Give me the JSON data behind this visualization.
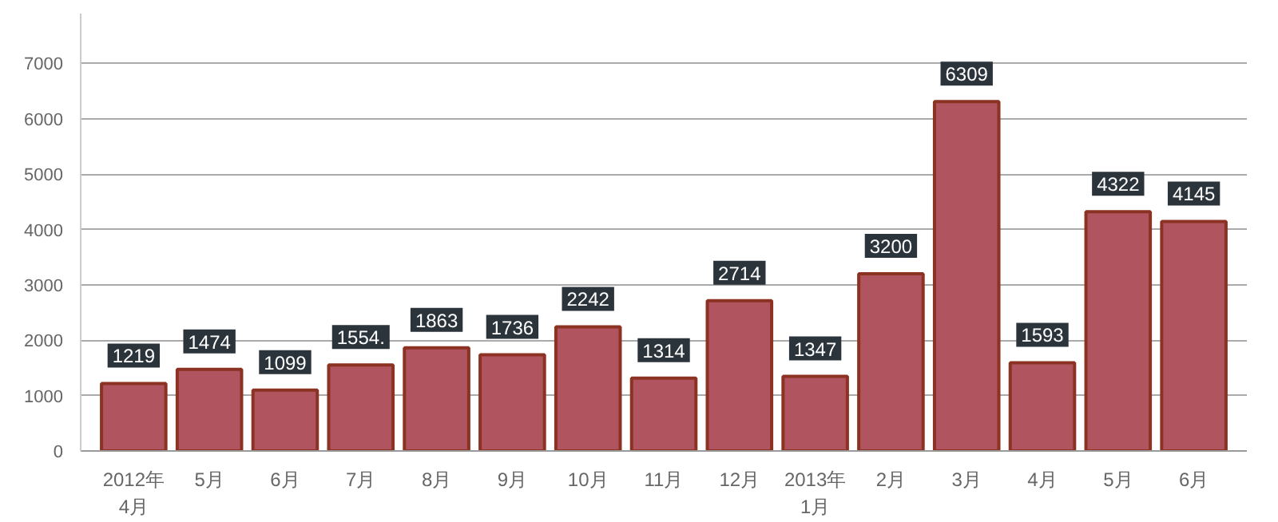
{
  "chart_data": {
    "type": "bar",
    "categories": [
      "2012年\n4月",
      "5月",
      "6月",
      "7月",
      "8月",
      "9月",
      "10月",
      "11月",
      "12月",
      "2013年\n1月",
      "2月",
      "3月",
      "4月",
      "5月",
      "6月"
    ],
    "values": [
      1219,
      1474,
      1099,
      1554,
      1863,
      1736,
      2242,
      1314,
      2714,
      1347,
      3200,
      6309,
      1593,
      4322,
      4145
    ],
    "value_labels": [
      "1219",
      "1474",
      "1099",
      "1554.",
      "1863",
      "1736",
      "2242",
      "1314",
      "2714",
      "1347",
      "3200",
      "6309",
      "1593",
      "4322",
      "4145"
    ],
    "color": "#b05460",
    "ylim": [
      0,
      7900
    ],
    "yticks": [
      0,
      1000,
      2000,
      3000,
      4000,
      5000,
      6000,
      7000
    ],
    "grid": "y"
  }
}
